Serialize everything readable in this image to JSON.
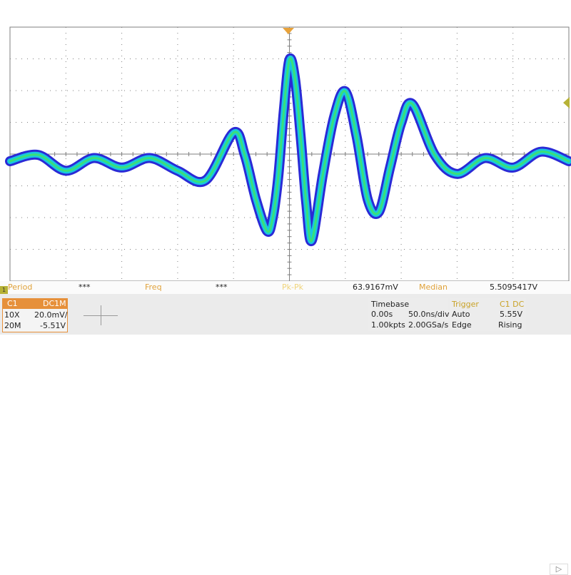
{
  "colors": {
    "background": "#ffffff",
    "grid": "#7f7f7f",
    "trigger_marker": "#e8a23a",
    "level_marker": "#b7b236",
    "trace_outer": "#2a2ad6",
    "trace_mid": "#19c7e0",
    "trace_core": "#39e07a",
    "channel_accent": "#e6903a"
  },
  "icons": {
    "trigger_position": "down-triangle-icon",
    "trigger_level": "left-triangle-icon",
    "channel_marker": "channel-1-marker-icon",
    "scroll": "right-arrow-icon"
  },
  "measurements": {
    "period_label": "Period",
    "period_value": "***",
    "freq_label": "Freq",
    "freq_value": "***",
    "pkpk_label": "Pk-Pk",
    "pkpk_value": "63.9167mV",
    "median_label": "Median",
    "median_value": "5.5095417V"
  },
  "channel": {
    "name": "C1",
    "coupling": "DC1M",
    "probe": "10X",
    "scale": "20.0mV/",
    "bandwidth": "20M",
    "offset": "-5.51V",
    "marker": "1"
  },
  "timebase": {
    "title": "Timebase",
    "delay": "0.00s",
    "scale": "50.0ns/div",
    "points": "1.00kpts",
    "rate": "2.00GSa/s"
  },
  "trigger": {
    "title": "Trigger",
    "source": "C1 DC",
    "mode": "Auto",
    "level": "5.55V",
    "type": "Edge",
    "slope": "Rising"
  },
  "chart_data": {
    "type": "line",
    "series": [
      {
        "x": [
          -5.0,
          -4.5,
          -4.0,
          -3.5,
          -3.0,
          -2.5,
          -2.0,
          -1.5,
          -1.0,
          -0.8,
          -0.6,
          -0.4,
          -0.3,
          -0.2,
          -0.1,
          0.0,
          0.1,
          0.2,
          0.3,
          0.4,
          0.6,
          0.8,
          1.0,
          1.2,
          1.4,
          1.6,
          1.8,
          2.0,
          2.2,
          2.6,
          3.0,
          3.5,
          4.0,
          4.5,
          5.0
        ],
        "values": [
          0.0,
          0.2,
          -0.3,
          0.1,
          -0.2,
          0.1,
          -0.3,
          -0.6,
          0.9,
          0.2,
          -1.2,
          -2.2,
          -1.8,
          -0.5,
          1.6,
          3.2,
          2.6,
          0.8,
          -1.3,
          -2.5,
          -0.4,
          1.4,
          2.2,
          0.8,
          -1.2,
          -1.6,
          -0.2,
          1.2,
          1.8,
          0.2,
          -0.4,
          0.1,
          -0.2,
          0.3,
          0.0
        ]
      }
    ],
    "x_range": [
      -5,
      5
    ],
    "y_range": [
      -4,
      4
    ],
    "grid": true
  }
}
